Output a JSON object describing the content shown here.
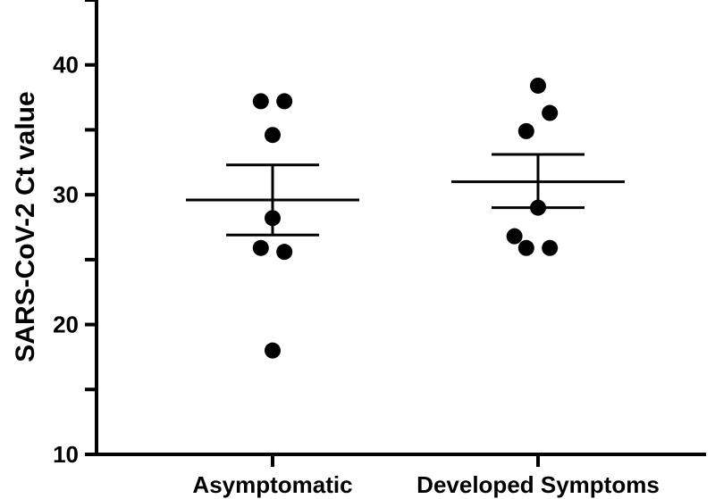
{
  "chart_data": {
    "type": "scatter",
    "title": "",
    "xlabel": "",
    "ylabel": "SARS-CoV-2 Ct value",
    "categories": [
      "Asymptomatic",
      "Developed Symptoms"
    ],
    "ylim": [
      10,
      45
    ],
    "yticks": [
      10,
      20,
      30,
      40
    ],
    "grid": false,
    "groups": [
      {
        "category": "Asymptomatic",
        "points": [
          {
            "offset": -0.12,
            "y": 37.2
          },
          {
            "offset": 0.12,
            "y": 37.2
          },
          {
            "offset": 0.0,
            "y": 34.6
          },
          {
            "offset": 0.0,
            "y": 28.2
          },
          {
            "offset": -0.12,
            "y": 25.9
          },
          {
            "offset": 0.12,
            "y": 25.6
          },
          {
            "offset": 0.0,
            "y": 18.0
          }
        ],
        "mean": 29.6,
        "sem_upper": 32.3,
        "sem_lower": 26.9
      },
      {
        "category": "Developed Symptoms",
        "points": [
          {
            "offset": 0.0,
            "y": 38.4
          },
          {
            "offset": 0.12,
            "y": 36.3
          },
          {
            "offset": -0.12,
            "y": 34.9
          },
          {
            "offset": 0.0,
            "y": 29.0
          },
          {
            "offset": -0.24,
            "y": 26.8
          },
          {
            "offset": -0.12,
            "y": 25.9
          },
          {
            "offset": 0.12,
            "y": 25.9
          }
        ],
        "mean": 31.0,
        "sem_upper": 33.1,
        "sem_lower": 29.0
      }
    ]
  }
}
